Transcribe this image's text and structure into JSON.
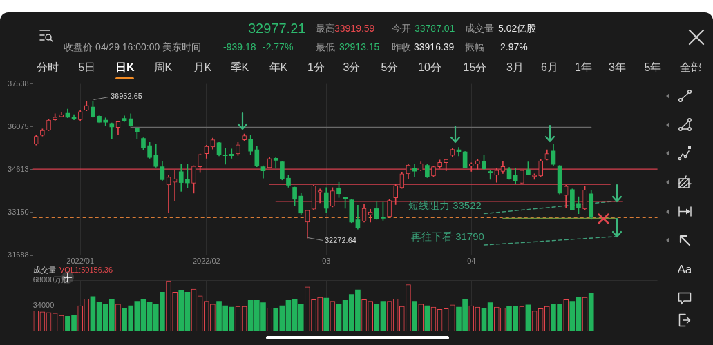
{
  "chart_data": [
    {
      "type": "candlestick",
      "categories": [
        null,
        null,
        null,
        null,
        null,
        null,
        null,
        "2022/01",
        null,
        null,
        null,
        null,
        null,
        null,
        null,
        null,
        null,
        null,
        null,
        null,
        null,
        null,
        null,
        null,
        null,
        null,
        null,
        "2022/02",
        null,
        null,
        null,
        null,
        null,
        null,
        null,
        null,
        null,
        null,
        null,
        null,
        null,
        null,
        null,
        null,
        null,
        null,
        "03",
        null,
        null,
        null,
        null,
        null,
        null,
        null,
        null,
        null,
        null,
        null,
        null,
        null,
        null,
        null,
        null,
        null,
        null,
        null,
        null,
        null,
        null,
        "04",
        null,
        null,
        null,
        null,
        null,
        null,
        null,
        null,
        null,
        null,
        null,
        null,
        null,
        null,
        null,
        null,
        null,
        null,
        null,
        null,
        null,
        null,
        null,
        null,
        null,
        null,
        null,
        null,
        null
      ],
      "ohlc": [
        [
          35490,
          35800,
          35450,
          35750
        ],
        [
          35780,
          36000,
          35760,
          35950
        ],
        [
          35960,
          36340,
          35940,
          36300
        ],
        [
          36310,
          36520,
          36280,
          36400
        ],
        [
          36420,
          36560,
          36410,
          36490
        ],
        [
          36540,
          36680,
          36380,
          36400
        ],
        [
          36410,
          36490,
          36310,
          36340
        ],
        [
          36320,
          36630,
          36270,
          36590
        ],
        [
          36640,
          36930,
          36620,
          36800
        ],
        [
          36750,
          36952.65,
          36400,
          36410
        ],
        [
          36440,
          36460,
          36210,
          36230
        ],
        [
          36300,
          36380,
          36110,
          36230
        ],
        [
          36190,
          36210,
          35660,
          36070
        ],
        [
          36050,
          36270,
          35800,
          36250
        ],
        [
          36360,
          36450,
          36250,
          36290
        ],
        [
          36350,
          36520,
          36090,
          36110
        ],
        [
          36020,
          36040,
          35660,
          35910
        ],
        [
          35680,
          35700,
          35280,
          35370
        ],
        [
          35430,
          35540,
          35000,
          35030
        ],
        [
          35120,
          35490,
          34690,
          34720
        ],
        [
          34710,
          34900,
          34220,
          34270
        ],
        [
          34090,
          34430,
          33150,
          34360
        ],
        [
          34180,
          34590,
          33540,
          34300
        ],
        [
          34540,
          34800,
          33870,
          34170
        ],
        [
          34280,
          34790,
          34000,
          34160
        ],
        [
          34150,
          34750,
          33810,
          34730
        ],
        [
          34710,
          35150,
          34510,
          35130
        ],
        [
          35160,
          35450,
          35000,
          35410
        ],
        [
          35390,
          35690,
          35310,
          35630
        ],
        [
          35530,
          35540,
          35080,
          35110
        ],
        [
          35120,
          35350,
          34800,
          35090
        ],
        [
          35140,
          35320,
          35000,
          35090
        ],
        [
          35150,
          35540,
          35100,
          35460
        ],
        [
          35630,
          35830,
          35600,
          35770
        ],
        [
          35640,
          35800,
          35110,
          35240
        ],
        [
          35290,
          35420,
          34710,
          34740
        ],
        [
          34710,
          34750,
          34320,
          34570
        ],
        [
          34680,
          35040,
          34670,
          34990
        ],
        [
          35000,
          35050,
          34660,
          34930
        ],
        [
          34880,
          34900,
          34260,
          34310
        ],
        [
          34320,
          34420,
          34010,
          34080
        ],
        [
          34010,
          34020,
          33380,
          33600
        ],
        [
          33710,
          33810,
          33070,
          33130
        ],
        [
          32820,
          33230,
          32272.64,
          33220
        ],
        [
          33260,
          34080,
          33250,
          34060
        ],
        [
          33850,
          33950,
          33480,
          33890
        ],
        [
          33830,
          34000,
          33150,
          33290
        ],
        [
          33360,
          34000,
          33340,
          33890
        ],
        [
          33990,
          34180,
          33660,
          33790
        ],
        [
          33660,
          33680,
          33290,
          33610
        ],
        [
          33580,
          33590,
          32800,
          32820
        ],
        [
          32900,
          33400,
          32580,
          32630
        ],
        [
          32850,
          33440,
          32820,
          33290
        ],
        [
          33070,
          33260,
          32820,
          33170
        ],
        [
          33280,
          33510,
          32910,
          32940
        ],
        [
          32990,
          33500,
          32880,
          32950
        ],
        [
          33010,
          33610,
          32990,
          33560
        ],
        [
          33650,
          34120,
          33420,
          34070
        ],
        [
          34000,
          34510,
          33970,
          34470
        ],
        [
          34470,
          34790,
          34300,
          34770
        ],
        [
          34660,
          34790,
          34360,
          34560
        ],
        [
          34590,
          34880,
          34570,
          34820
        ],
        [
          34760,
          34790,
          34340,
          34360
        ],
        [
          34400,
          34720,
          34370,
          34710
        ],
        [
          34710,
          34940,
          34650,
          34860
        ],
        [
          34850,
          34980,
          34570,
          34960
        ],
        [
          35100,
          35350,
          35040,
          35300
        ],
        [
          35290,
          35370,
          35080,
          35230
        ],
        [
          35220,
          35230,
          34670,
          34680
        ],
        [
          34730,
          34850,
          34550,
          34820
        ],
        [
          34800,
          34980,
          34630,
          34920
        ],
        [
          34890,
          35110,
          34590,
          34640
        ],
        [
          34550,
          34590,
          34280,
          34500
        ],
        [
          34420,
          34670,
          34180,
          34590
        ],
        [
          34550,
          34900,
          34480,
          34720
        ],
        [
          34630,
          34690,
          34280,
          34300
        ],
        [
          34420,
          34650,
          34120,
          34220
        ],
        [
          34150,
          34600,
          34140,
          34590
        ],
        [
          34610,
          34880,
          34430,
          34450
        ],
        [
          34380,
          34470,
          34280,
          34420
        ],
        [
          34400,
          34980,
          34380,
          34910
        ],
        [
          34960,
          35290,
          34940,
          35160
        ],
        [
          35250,
          35490,
          34750,
          34790
        ],
        [
          34750,
          34760,
          33780,
          33810
        ],
        [
          33730,
          34080,
          33320,
          34050
        ],
        [
          33930,
          33950,
          33230,
          33240
        ],
        [
          33460,
          33690,
          33110,
          33300
        ],
        [
          33270,
          34050,
          33250,
          33916.39
        ],
        [
          33787.01,
          33919.59,
          32913.15,
          32977.21
        ],
        null,
        null,
        null,
        null,
        null,
        null,
        null,
        null,
        null,
        null
      ],
      "colors": [
        "#e8464e",
        "#e8464e",
        "#e8464e",
        "#e8464e",
        "#e8464e",
        "#22b35c",
        "#22b35c",
        "#e8464e",
        "#e8464e",
        "#22b35c",
        "#22b35c",
        "#22b35c",
        "#22b35c",
        "#e8464e",
        "#22b35c",
        "#22b35c",
        "#22b35c",
        "#22b35c",
        "#22b35c",
        "#22b35c",
        "#22b35c",
        "#e8464e",
        "#e8464e",
        "#22b35c",
        "#22b35c",
        "#e8464e",
        "#e8464e",
        "#e8464e",
        "#e8464e",
        "#22b35c",
        "#22b35c",
        "#22b35c",
        "#e8464e",
        "#e8464e",
        "#22b35c",
        "#22b35c",
        "#22b35c",
        "#e8464e",
        "#22b35c",
        "#22b35c",
        "#22b35c",
        "#22b35c",
        "#22b35c",
        "#e8464e",
        "#e8464e",
        "#e8464e",
        "#22b35c",
        "#e8464e",
        "#22b35c",
        "#22b35c",
        "#22b35c",
        "#22b35c",
        "#e8464e",
        "#e8464e",
        "#22b35c",
        "#22b35c",
        "#e8464e",
        "#e8464e",
        "#e8464e",
        "#e8464e",
        "#22b35c",
        "#e8464e",
        "#22b35c",
        "#e8464e",
        "#e8464e",
        "#e8464e",
        "#e8464e",
        "#22b35c",
        "#22b35c",
        "#e8464e",
        "#e8464e",
        "#22b35c",
        "#22b35c",
        "#e8464e",
        "#e8464e",
        "#22b35c",
        "#22b35c",
        "#e8464e",
        "#22b35c",
        "#e8464e",
        "#e8464e",
        "#e8464e",
        "#22b35c",
        "#22b35c",
        "#e8464e",
        "#22b35c",
        "#22b35c",
        "#e8464e",
        "#22b35c",
        null,
        null,
        null,
        null,
        null,
        null,
        null,
        null,
        null,
        null
      ],
      "series": [
        {
          "type": "line",
          "color": "#6a6a6a",
          "values": [
            null,
            null,
            null,
            null,
            null,
            null,
            null,
            null,
            null,
            null,
            null,
            null,
            null,
            null,
            null,
            36060,
            null,
            null,
            null,
            null,
            null,
            null,
            null,
            null,
            null,
            null,
            null,
            null,
            null,
            null,
            null,
            null,
            null,
            null,
            null,
            null,
            null,
            null,
            null,
            null,
            null,
            null,
            null,
            null,
            null,
            null,
            null,
            null,
            null,
            null,
            null,
            null,
            null,
            null,
            null,
            null,
            null,
            null,
            null,
            null,
            null,
            null,
            null,
            null,
            null,
            null,
            null,
            null,
            null,
            null,
            null,
            null,
            null,
            null,
            null,
            null,
            null,
            null,
            null,
            null,
            null,
            null,
            null,
            null,
            null,
            null,
            null,
            null,
            36060,
            null,
            null,
            null,
            null,
            null,
            null,
            null,
            null,
            null,
            null
          ]
        },
        {
          "type": "line",
          "color": "#d8414f",
          "values": [
            null,
            null,
            null,
            null,
            null,
            null,
            null,
            null,
            null,
            null,
            null,
            null,
            null,
            null,
            null,
            null,
            null,
            null,
            null,
            null,
            null,
            null,
            null,
            null,
            null,
            null,
            null,
            null,
            null,
            null,
            null,
            null,
            null,
            null,
            null,
            null,
            null,
            34110,
            null,
            null,
            null,
            null,
            null,
            null,
            null,
            null,
            null,
            null,
            null,
            null,
            null,
            null,
            null,
            null,
            null,
            null,
            null,
            null,
            null,
            null,
            null,
            null,
            null,
            null,
            null,
            null,
            null,
            null,
            null,
            null,
            null,
            null,
            null,
            null,
            null,
            null,
            null,
            null,
            null,
            null,
            null,
            null,
            null,
            null,
            null,
            null,
            null,
            null,
            null,
            null,
            null,
            34110,
            null,
            null,
            null,
            null,
            null,
            null,
            null
          ]
        },
        {
          "type": "line",
          "color": "#d8414f",
          "values": [
            null,
            null,
            null,
            null,
            null,
            null,
            null,
            null,
            null,
            null,
            null,
            null,
            null,
            null,
            null,
            null,
            null,
            null,
            null,
            null,
            null,
            null,
            null,
            null,
            null,
            null,
            null,
            null,
            null,
            null,
            null,
            null,
            null,
            null,
            null,
            null,
            null,
            null,
            33530,
            null,
            null,
            null,
            null,
            null,
            null,
            null,
            null,
            null,
            null,
            null,
            null,
            null,
            null,
            null,
            null,
            null,
            null,
            null,
            null,
            null,
            null,
            null,
            null,
            null,
            null,
            null,
            null,
            null,
            null,
            null,
            null,
            null,
            null,
            null,
            null,
            null,
            null,
            null,
            null,
            null,
            null,
            null,
            null,
            null,
            null,
            null,
            null,
            null,
            null,
            null,
            null,
            null,
            null,
            33530,
            null,
            null,
            null,
            null,
            null
          ]
        },
        {
          "type": "line",
          "color": "#3f9f7a",
          "line_style": "dashed",
          "values": [
            null,
            null,
            null,
            null,
            null,
            null,
            null,
            null,
            null,
            null,
            null,
            null,
            null,
            null,
            null,
            null,
            null,
            null,
            null,
            null,
            null,
            null,
            null,
            null,
            null,
            null,
            null,
            null,
            null,
            null,
            null,
            null,
            null,
            null,
            null,
            null,
            null,
            null,
            null,
            null,
            null,
            null,
            null,
            null,
            null,
            null,
            null,
            null,
            null,
            null,
            null,
            null,
            null,
            null,
            null,
            null,
            null,
            null,
            null,
            null,
            null,
            null,
            null,
            null,
            null,
            null,
            null,
            null,
            null,
            null,
            null,
            33110,
            null,
            null,
            null,
            null,
            null,
            null,
            null,
            null,
            null,
            null,
            null,
            null,
            null,
            null,
            null,
            null,
            null,
            null,
            null,
            null,
            33540,
            null,
            null,
            null,
            null,
            null,
            null
          ]
        },
        {
          "type": "line",
          "color": "#3f9f7a",
          "line_style": "dashed",
          "values": [
            null,
            null,
            null,
            null,
            null,
            null,
            null,
            null,
            null,
            null,
            null,
            null,
            null,
            null,
            null,
            null,
            null,
            null,
            null,
            null,
            null,
            null,
            null,
            null,
            null,
            null,
            null,
            null,
            null,
            null,
            null,
            null,
            null,
            null,
            null,
            null,
            null,
            null,
            null,
            null,
            null,
            null,
            null,
            null,
            null,
            null,
            null,
            null,
            null,
            null,
            null,
            null,
            null,
            null,
            null,
            null,
            null,
            null,
            null,
            null,
            null,
            null,
            null,
            null,
            null,
            null,
            null,
            null,
            null,
            null,
            null,
            32040,
            null,
            null,
            null,
            null,
            null,
            null,
            null,
            null,
            null,
            null,
            null,
            null,
            null,
            null,
            null,
            null,
            null,
            null,
            null,
            null,
            32330,
            null,
            null,
            null,
            null,
            null,
            null
          ]
        },
        {
          "type": "line",
          "color": "#6f8f3a",
          "values": [
            null,
            null,
            null,
            null,
            null,
            null,
            null,
            null,
            null,
            null,
            null,
            null,
            null,
            null,
            null,
            null,
            null,
            null,
            null,
            null,
            null,
            null,
            null,
            null,
            null,
            null,
            null,
            null,
            null,
            null,
            null,
            null,
            null,
            null,
            null,
            null,
            null,
            null,
            null,
            null,
            null,
            null,
            null,
            null,
            null,
            null,
            null,
            null,
            null,
            null,
            null,
            null,
            null,
            null,
            null,
            null,
            null,
            null,
            null,
            null,
            null,
            null,
            null,
            null,
            null,
            null,
            null,
            null,
            null,
            null,
            null,
            null,
            null,
            null,
            32950,
            null,
            null,
            null,
            null,
            null,
            null,
            null,
            null,
            null,
            null,
            null,
            null,
            null,
            null,
            null,
            null,
            null,
            32950,
            null,
            null,
            null,
            null,
            null,
            null
          ]
        }
      ],
      "ref_lines": [
        {
          "axis": "y",
          "value": 34630,
          "color": "#d8414f"
        },
        {
          "axis": "y",
          "value": 32977.21,
          "color": "#d97b35",
          "line_style": "dashed"
        }
      ],
      "ylim": [
        31688,
        37538
      ],
      "yticks": [
        31688,
        33150,
        34613,
        36075,
        37538
      ],
      "grid": "x",
      "annotations": [
        "32977.21",
        "最高",
        "33919.59",
        "今开",
        "33787.01",
        "成交量",
        "5.02亿股",
        "收盘价 04/29 16:00:00 美东时间",
        "-939.18",
        "-2.77%",
        "最低",
        "32913.15",
        "昨收",
        "33916.39",
        "振幅",
        "2.97%",
        "分时",
        "5日",
        "日K",
        "周K",
        "月K",
        "季K",
        "年K",
        "1分",
        "3分",
        "5分",
        "10分",
        "15分",
        "3月",
        "6月",
        "1年",
        "3年",
        "5年",
        "全部",
        "36952.65",
        "32272.64",
        "短线阻力 33522",
        "再往下看 31790"
      ]
    },
    {
      "type": "bar",
      "title": "成交量",
      "annotations": [
        "VOL1:50156.36",
        "Aa"
      ],
      "categories": [
        null,
        null,
        null,
        null,
        null,
        null,
        null,
        "2022/01",
        null,
        null,
        null,
        null,
        null,
        null,
        null,
        null,
        null,
        null,
        null,
        null,
        null,
        null,
        null,
        null,
        null,
        null,
        null,
        "2022/02",
        null,
        null,
        null,
        null,
        null,
        null,
        null,
        null,
        null,
        null,
        null,
        null,
        null,
        null,
        null,
        null,
        null,
        null,
        "03",
        null,
        null,
        null,
        null,
        null,
        null,
        null,
        null,
        null,
        null,
        null,
        null,
        null,
        null,
        null,
        null,
        null,
        null,
        null,
        null,
        null,
        null,
        "04",
        null,
        null,
        null,
        null,
        null,
        null,
        null,
        null,
        null,
        null,
        null,
        null,
        null,
        null,
        null,
        null,
        null,
        null,
        null,
        null,
        null,
        null,
        null,
        null,
        null,
        null,
        null,
        null,
        null
      ],
      "values": [
        29000,
        26000,
        25000,
        24000,
        21000,
        20000,
        21000,
        34000,
        43000,
        46000,
        39000,
        36000,
        43000,
        36000,
        31000,
        34000,
        40000,
        42000,
        39000,
        36000,
        52000,
        67000,
        52000,
        54000,
        52000,
        56000,
        47000,
        40000,
        36000,
        40000,
        34000,
        32000,
        33000,
        33000,
        41000,
        41000,
        38000,
        31000,
        30000,
        34000,
        41000,
        43000,
        36000,
        59000,
        42000,
        45000,
        44000,
        40000,
        36000,
        41000,
        49000,
        55000,
        42000,
        40000,
        36000,
        40000,
        40000,
        43000,
        33000,
        62000,
        40000,
        36000,
        34000,
        32000,
        29000,
        30000,
        35000,
        32000,
        43000,
        34000,
        32000,
        30000,
        38000,
        32000,
        31000,
        33000,
        33000,
        33000,
        35000,
        27000,
        30000,
        33000,
        36000,
        36000,
        42000,
        40000,
        45000,
        45000,
        50156.36,
        null,
        null,
        null,
        null,
        null,
        null,
        null,
        null,
        null,
        null
      ],
      "colors": [
        "#e8464e",
        "#e8464e",
        "#e8464e",
        "#e8464e",
        "#e8464e",
        "#22b35c",
        "#22b35c",
        "#e8464e",
        "#e8464e",
        "#22b35c",
        "#22b35c",
        "#22b35c",
        "#22b35c",
        "#e8464e",
        "#22b35c",
        "#22b35c",
        "#22b35c",
        "#22b35c",
        "#22b35c",
        "#22b35c",
        "#22b35c",
        "#e8464e",
        "#e8464e",
        "#22b35c",
        "#22b35c",
        "#e8464e",
        "#e8464e",
        "#e8464e",
        "#e8464e",
        "#22b35c",
        "#22b35c",
        "#22b35c",
        "#e8464e",
        "#e8464e",
        "#22b35c",
        "#22b35c",
        "#22b35c",
        "#e8464e",
        "#22b35c",
        "#22b35c",
        "#22b35c",
        "#22b35c",
        "#22b35c",
        "#e8464e",
        "#e8464e",
        "#e8464e",
        "#22b35c",
        "#e8464e",
        "#22b35c",
        "#22b35c",
        "#22b35c",
        "#22b35c",
        "#e8464e",
        "#e8464e",
        "#22b35c",
        "#22b35c",
        "#e8464e",
        "#e8464e",
        "#e8464e",
        "#e8464e",
        "#22b35c",
        "#e8464e",
        "#22b35c",
        "#e8464e",
        "#e8464e",
        "#e8464e",
        "#e8464e",
        "#22b35c",
        "#22b35c",
        "#e8464e",
        "#e8464e",
        "#22b35c",
        "#22b35c",
        "#e8464e",
        "#e8464e",
        "#22b35c",
        "#22b35c",
        "#e8464e",
        "#22b35c",
        "#e8464e",
        "#e8464e",
        "#e8464e",
        "#22b35c",
        "#22b35c",
        "#e8464e",
        "#22b35c",
        "#22b35c",
        "#e8464e",
        "#22b35c",
        null,
        null,
        null,
        null,
        null,
        null,
        null,
        null,
        null,
        null
      ],
      "ylim": [
        0,
        68000
      ],
      "yticks": [
        34000,
        {
          "value": 68000,
          "label": "68000万股"
        }
      ],
      "grid": true,
      "tick_labels": "y"
    }
  ]
}
